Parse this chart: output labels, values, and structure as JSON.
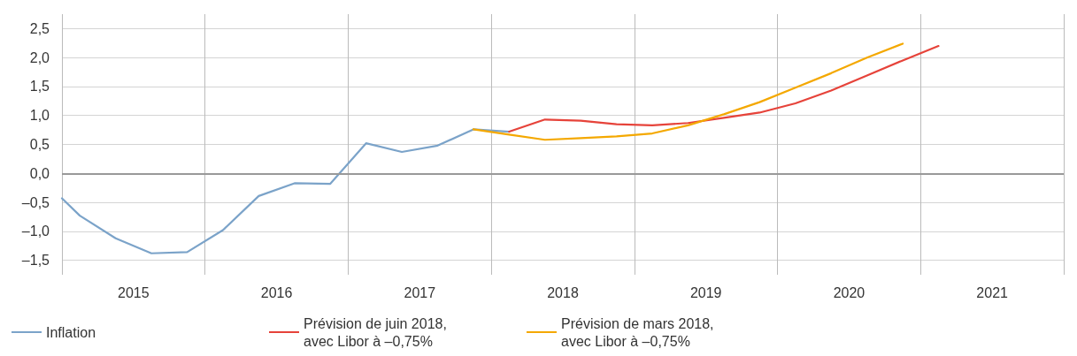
{
  "chart_data": {
    "type": "line",
    "x": [
      2015.0,
      2015.125,
      2015.375,
      2015.625,
      2015.875,
      2016.125,
      2016.375,
      2016.625,
      2016.875,
      2017.125,
      2017.375,
      2017.625,
      2017.875,
      2018.125
    ],
    "series": [
      {
        "name": "Inflation",
        "color": "#7ba3c9",
        "values": [
          -0.43,
          -0.73,
          -1.12,
          -1.38,
          -1.36,
          -0.98,
          -0.39,
          -0.17,
          -0.18,
          0.52,
          0.37,
          0.48,
          0.76,
          0.72
        ]
      },
      {
        "name": "Prévision de juin 2018, avec Libor à –0,75%",
        "color": "#e6433a",
        "x": [
          2018.125,
          2018.375,
          2018.625,
          2018.875,
          2019.125,
          2019.375,
          2019.625,
          2019.875,
          2020.125,
          2020.375,
          2020.625,
          2020.875,
          2021.125
        ],
        "values": [
          0.72,
          0.93,
          0.91,
          0.85,
          0.83,
          0.87,
          0.96,
          1.05,
          1.21,
          1.43,
          1.69,
          1.95,
          2.2
        ]
      },
      {
        "name": "Prévision de mars 2018, avec Libor à –0,75%",
        "color": "#f4a800",
        "x": [
          2017.875,
          2018.125,
          2018.375,
          2018.625,
          2018.875,
          2019.125,
          2019.375,
          2019.625,
          2019.875,
          2020.125,
          2020.375,
          2020.625,
          2020.875
        ],
        "values": [
          0.76,
          0.67,
          0.58,
          0.61,
          0.64,
          0.69,
          0.83,
          1.02,
          1.23,
          1.48,
          1.73,
          2.0,
          2.24
        ]
      }
    ],
    "xlim": [
      2015,
      2022
    ],
    "xticks": [
      {
        "value": 2015,
        "label": null
      },
      {
        "value": 2015.5,
        "label": "2015"
      },
      {
        "value": 2016,
        "label": null
      },
      {
        "value": 2016.5,
        "label": "2016"
      },
      {
        "value": 2017,
        "label": null
      },
      {
        "value": 2017.5,
        "label": "2017"
      },
      {
        "value": 2018,
        "label": null
      },
      {
        "value": 2018.5,
        "label": "2018"
      },
      {
        "value": 2019,
        "label": null
      },
      {
        "value": 2019.5,
        "label": "2019"
      },
      {
        "value": 2020,
        "label": null
      },
      {
        "value": 2020.5,
        "label": "2020"
      },
      {
        "value": 2021,
        "label": null
      },
      {
        "value": 2021.5,
        "label": "2021"
      },
      {
        "value": 2022,
        "label": null
      }
    ],
    "ylim": [
      -1.75,
      2.75
    ],
    "yticks": [
      {
        "value": -1.5,
        "label": "–1,5"
      },
      {
        "value": -1.0,
        "label": "–1,0"
      },
      {
        "value": -0.5,
        "label": "–0,5"
      },
      {
        "value": 0.0,
        "label": "0,0"
      },
      {
        "value": 0.5,
        "label": "0,5"
      },
      {
        "value": 1.0,
        "label": "1,0"
      },
      {
        "value": 1.5,
        "label": "1,5"
      },
      {
        "value": 2.0,
        "label": "2,0"
      },
      {
        "value": 2.5,
        "label": "2,5"
      }
    ],
    "ref_lines": [
      {
        "axis": "y",
        "value": 0,
        "label": null,
        "color": "#999999"
      }
    ],
    "grid": true,
    "legend": "bottom left",
    "marker": "none",
    "line_style": "solid"
  }
}
